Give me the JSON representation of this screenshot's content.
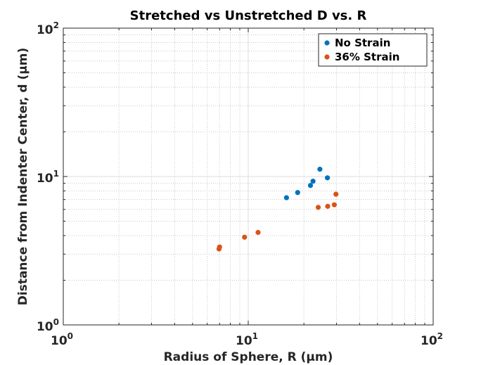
{
  "chart_data": {
    "type": "scatter",
    "title": "Stretched vs Unstretched D vs. R",
    "xlabel": "Radius of Sphere, R (μm)",
    "ylabel": "Distance from Indenter Center, d (μm)",
    "xscale": "log",
    "yscale": "log",
    "xlim": [
      1,
      100
    ],
    "ylim": [
      1,
      100
    ],
    "xticks": [
      {
        "base": "10",
        "exp": "0",
        "value": 1
      },
      {
        "base": "10",
        "exp": "1",
        "value": 10
      },
      {
        "base": "10",
        "exp": "2",
        "value": 100
      }
    ],
    "yticks": [
      {
        "base": "10",
        "exp": "0",
        "value": 1
      },
      {
        "base": "10",
        "exp": "1",
        "value": 10
      },
      {
        "base": "10",
        "exp": "2",
        "value": 100
      }
    ],
    "grid": true,
    "legend_position": "top-right",
    "series": [
      {
        "name": "No Strain",
        "color": "#0072BD",
        "x": [
          16.1,
          18.5,
          21.7,
          22.4,
          24.4,
          26.8
        ],
        "y": [
          7.2,
          7.8,
          8.7,
          9.3,
          11.2,
          9.8
        ]
      },
      {
        "name": "36% Strain",
        "color": "#D95319",
        "x": [
          6.95,
          7.0,
          9.55,
          11.3,
          23.9,
          26.9,
          29.2,
          29.8
        ],
        "y": [
          3.25,
          3.35,
          3.9,
          4.2,
          6.2,
          6.3,
          6.45,
          7.6
        ]
      }
    ]
  }
}
